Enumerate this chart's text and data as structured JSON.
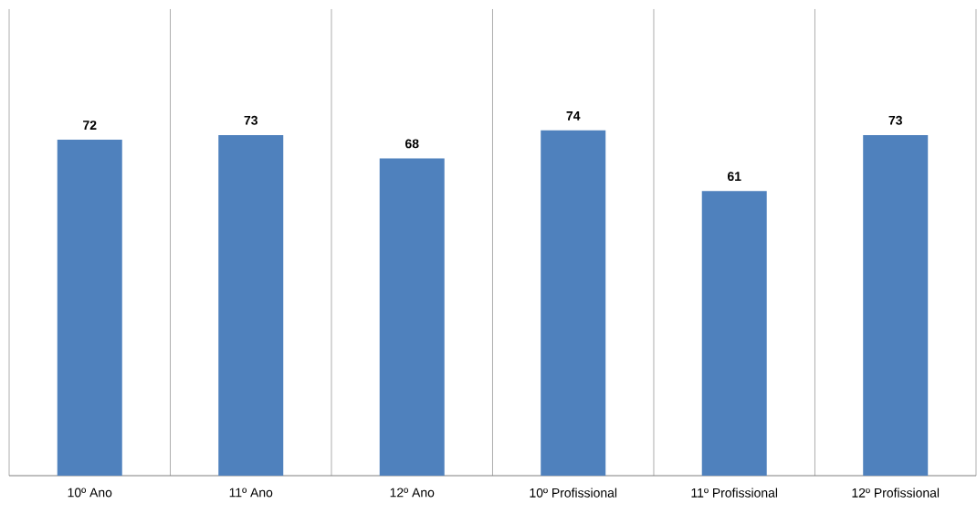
{
  "chart_data": {
    "type": "bar",
    "categories": [
      "10º Ano",
      "11º Ano",
      "12º Ano",
      "10º Profissional",
      "11º Profissional",
      "12º Profissional"
    ],
    "values": [
      72,
      73,
      68,
      74,
      61,
      73
    ],
    "color": "#4f81bd",
    "data_labels": true,
    "ylim": [
      0,
      100
    ],
    "grid": "x"
  }
}
